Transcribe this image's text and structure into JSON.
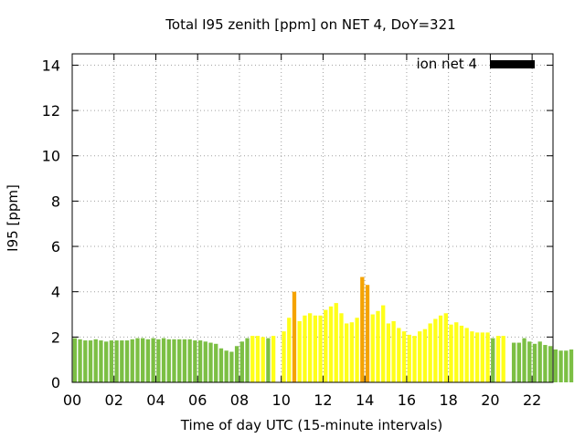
{
  "chart_data": {
    "type": "bar",
    "title": "Total I95 zenith [ppm] on NET 4, DoY=321",
    "xlabel": "Time of day UTC (15-minute intervals)",
    "ylabel": "I95 [ppm]",
    "xlim": [
      0,
      23
    ],
    "ylim": [
      0,
      14.5
    ],
    "x_tick_labels": [
      "00",
      "02",
      "04",
      "06",
      "08",
      "10",
      "12",
      "14",
      "16",
      "18",
      "20",
      "22"
    ],
    "x_tick_values": [
      0,
      2,
      4,
      6,
      8,
      10,
      12,
      14,
      16,
      18,
      20,
      22
    ],
    "y_ticks": [
      0,
      2,
      4,
      6,
      8,
      10,
      12,
      14
    ],
    "grid": true,
    "legend": {
      "label": "ion net 4",
      "position": "top-right"
    },
    "interval_hours": 0.25,
    "colors": {
      "green": "#7cbf44",
      "yellow": "#ffff19",
      "orange": "#f5a300",
      "legend": "#000000"
    },
    "thresholds": {
      "yellow_min": 2.0,
      "orange_min": 4.0
    },
    "values": [
      1.95,
      1.9,
      1.85,
      1.85,
      1.9,
      1.85,
      1.8,
      1.85,
      1.85,
      1.85,
      1.85,
      1.9,
      1.95,
      1.95,
      1.9,
      1.95,
      1.9,
      1.95,
      1.9,
      1.9,
      1.9,
      1.9,
      1.9,
      1.85,
      1.85,
      1.8,
      1.75,
      1.7,
      1.5,
      1.4,
      1.35,
      1.6,
      1.8,
      1.95,
      2.05,
      2.05,
      2.0,
      1.95,
      2.05,
      null,
      2.25,
      2.85,
      4.0,
      2.7,
      2.95,
      3.05,
      2.95,
      2.95,
      3.2,
      3.35,
      3.5,
      3.05,
      2.6,
      2.65,
      2.85,
      4.65,
      4.3,
      3.0,
      3.15,
      3.4,
      2.6,
      2.7,
      2.4,
      2.25,
      2.1,
      2.05,
      2.25,
      2.35,
      2.6,
      2.8,
      2.95,
      3.05,
      2.55,
      2.65,
      2.5,
      2.4,
      2.25,
      2.2,
      2.2,
      2.2,
      1.95,
      2.05,
      2.05,
      null,
      1.75,
      1.75,
      1.95,
      1.8,
      1.7,
      1.8,
      1.65,
      1.6,
      1.45,
      1.4,
      1.4,
      1.45
    ]
  }
}
